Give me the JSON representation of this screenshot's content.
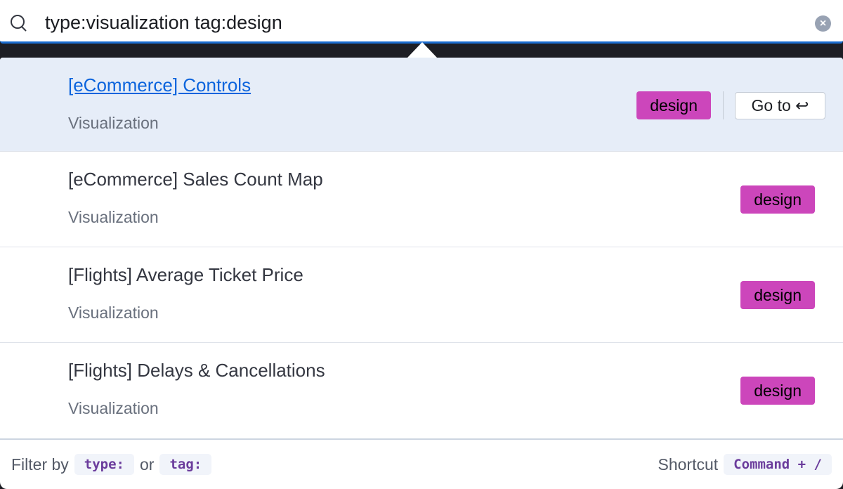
{
  "search": {
    "value": "type:visualization tag:design"
  },
  "results": [
    {
      "title": "[eCommerce] Controls",
      "type": "Visualization",
      "tag": "design",
      "active": true
    },
    {
      "title": "[eCommerce] Sales Count Map",
      "type": "Visualization",
      "tag": "design"
    },
    {
      "title": "[Flights] Average Ticket Price",
      "type": "Visualization",
      "tag": "design"
    },
    {
      "title": "[Flights] Delays & Cancellations",
      "type": "Visualization",
      "tag": "design"
    }
  ],
  "goto_label": "Go to ↩",
  "footer": {
    "filter_by": "Filter by",
    "type_code": "type:",
    "or": "or",
    "tag_code": "tag:",
    "shortcut": "Shortcut",
    "shortcut_code": "Command + /"
  },
  "colors": {
    "accent": "#1a6ccf",
    "tag": "#cc46bb",
    "active_bg": "#e6edf8"
  }
}
